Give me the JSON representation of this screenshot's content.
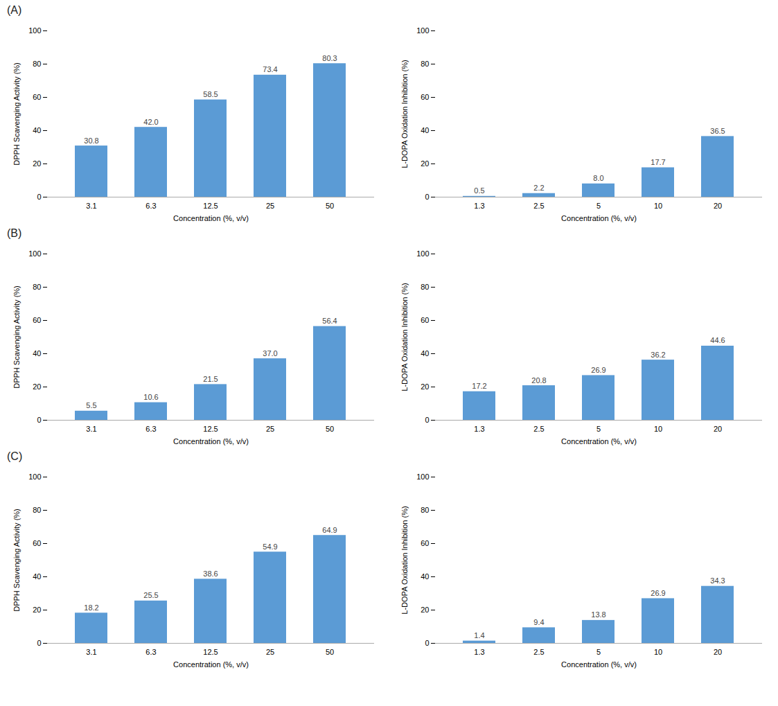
{
  "chart_data": [
    {
      "type": "bar",
      "title": "(A)",
      "categories": [
        "3.1",
        "6.3",
        "12.5",
        "25",
        "50"
      ],
      "values": [
        30.8,
        42.0,
        58.5,
        73.4,
        80.3
      ],
      "value_labels": [
        "30.8",
        "42.0",
        "58.5",
        "73.4",
        "80.3"
      ],
      "xlabel": "Concentration (%, v/v)",
      "ylabel": "DPPH Scavenging Activity (%)",
      "ylim": [
        0,
        100
      ],
      "yticks": [
        0,
        20,
        40,
        60,
        80,
        100
      ],
      "color": "#5B9BD5",
      "data_labels": true,
      "grid": false
    },
    {
      "type": "bar",
      "categories": [
        "1.3",
        "2.5",
        "5",
        "10",
        "20"
      ],
      "values": [
        0.5,
        2.2,
        8.0,
        17.7,
        36.5
      ],
      "value_labels": [
        "0.5",
        "2.2",
        "8.0",
        "17.7",
        "36.5"
      ],
      "xlabel": "Concentration (%, v/v)",
      "ylabel": "L-DOPA Oxidation Inhibition (%)",
      "ylim": [
        0,
        100
      ],
      "yticks": [
        0,
        20,
        40,
        60,
        80,
        100
      ],
      "color": "#5B9BD5",
      "data_labels": true,
      "grid": false
    },
    {
      "type": "bar",
      "title": "(B)",
      "categories": [
        "3.1",
        "6.3",
        "12.5",
        "25",
        "50"
      ],
      "values": [
        5.5,
        10.6,
        21.5,
        37.0,
        56.4
      ],
      "value_labels": [
        "5.5",
        "10.6",
        "21.5",
        "37.0",
        "56.4"
      ],
      "xlabel": "Concentration (%, v/v)",
      "ylabel": "DPPH Scavenging Activity (%)",
      "ylim": [
        0,
        100
      ],
      "yticks": [
        0,
        20,
        40,
        60,
        80,
        100
      ],
      "color": "#5B9BD5",
      "data_labels": true,
      "grid": false
    },
    {
      "type": "bar",
      "categories": [
        "1.3",
        "2.5",
        "5",
        "10",
        "20"
      ],
      "values": [
        17.2,
        20.8,
        26.9,
        36.2,
        44.6
      ],
      "value_labels": [
        "17.2",
        "20.8",
        "26.9",
        "36.2",
        "44.6"
      ],
      "xlabel": "Concentration (%, v/v)",
      "ylabel": "L-DOPA Oxidation Inhibition (%)",
      "ylim": [
        0,
        100
      ],
      "yticks": [
        0,
        20,
        40,
        60,
        80,
        100
      ],
      "color": "#5B9BD5",
      "data_labels": true,
      "grid": false
    },
    {
      "type": "bar",
      "title": "(C)",
      "categories": [
        "3.1",
        "6.3",
        "12.5",
        "25",
        "50"
      ],
      "values": [
        18.2,
        25.5,
        38.6,
        54.9,
        64.9
      ],
      "value_labels": [
        "18.2",
        "25.5",
        "38.6",
        "54.9",
        "64.9"
      ],
      "xlabel": "Concentration (%, v/v)",
      "ylabel": "DPPH Scavenging Activity (%)",
      "ylim": [
        0,
        100
      ],
      "yticks": [
        0,
        20,
        40,
        60,
        80,
        100
      ],
      "color": "#5B9BD5",
      "data_labels": true,
      "grid": false
    },
    {
      "type": "bar",
      "categories": [
        "1.3",
        "2.5",
        "5",
        "10",
        "20"
      ],
      "values": [
        1.4,
        9.4,
        13.8,
        26.9,
        34.3
      ],
      "value_labels": [
        "1.4",
        "9.4",
        "13.8",
        "26.9",
        "34.3"
      ],
      "xlabel": "Concentration (%, v/v)",
      "ylabel": "L-DOPA Oxidation Inhibition (%)",
      "ylim": [
        0,
        100
      ],
      "yticks": [
        0,
        20,
        40,
        60,
        80,
        100
      ],
      "color": "#5B9BD5",
      "data_labels": true,
      "grid": false
    }
  ]
}
